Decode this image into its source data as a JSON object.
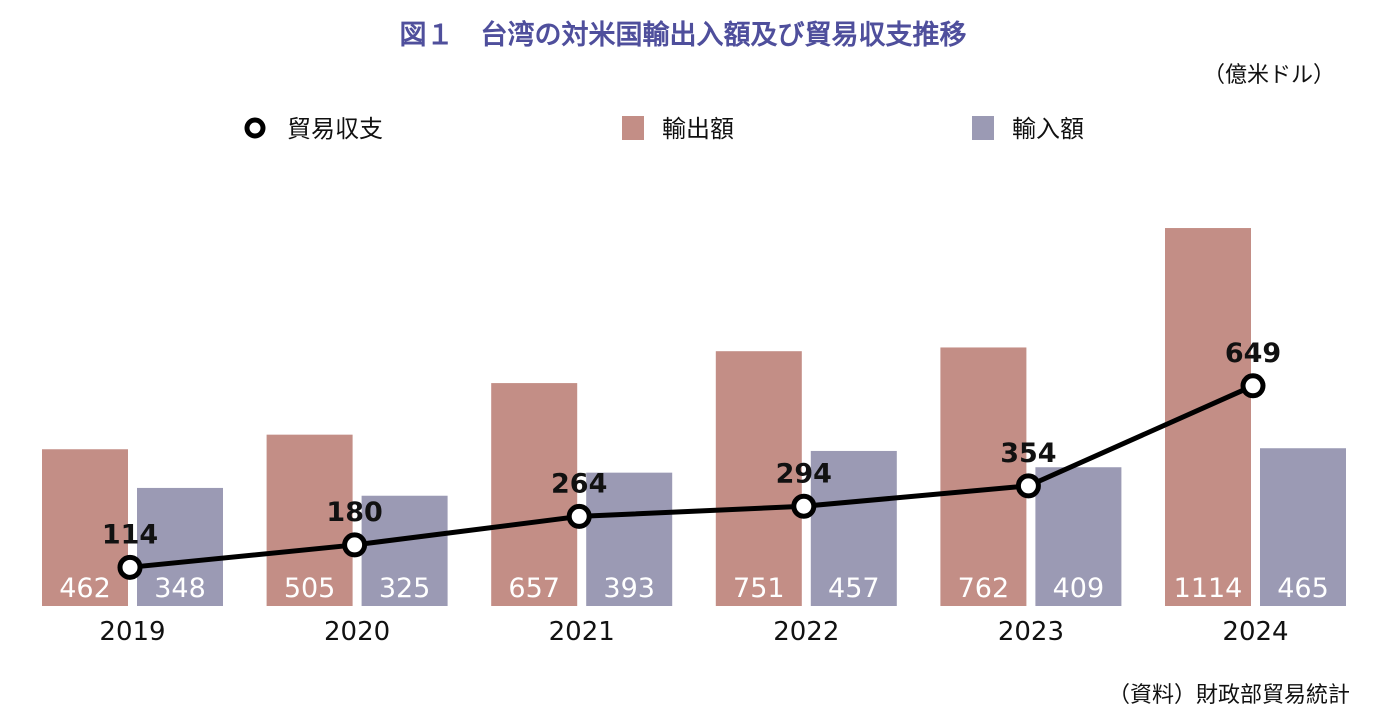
{
  "chart_data": {
    "type": "bar",
    "title": "図１　台湾の対米国輸出入額及び貿易収支推移",
    "unit": "（億米ドル）",
    "source": "（資料）財政部貿易統計",
    "categories": [
      "2019",
      "2020",
      "2021",
      "2022",
      "2023",
      "2024"
    ],
    "series": [
      {
        "name": "輸出額",
        "kind": "bar",
        "color": "#c38e86",
        "values": [
          462,
          505,
          657,
          751,
          762,
          1114
        ]
      },
      {
        "name": "輸入額",
        "kind": "bar",
        "color": "#9b9ab4",
        "values": [
          348,
          325,
          393,
          457,
          409,
          465
        ]
      },
      {
        "name": "貿易収支",
        "kind": "line",
        "color": "#000000",
        "values": [
          114,
          180,
          264,
          294,
          354,
          649
        ]
      }
    ],
    "legend": {
      "placement": "top",
      "order": [
        "貿易収支",
        "輸出額",
        "輸入額"
      ]
    },
    "ylim": [
      0,
      1120
    ],
    "grid": false
  }
}
